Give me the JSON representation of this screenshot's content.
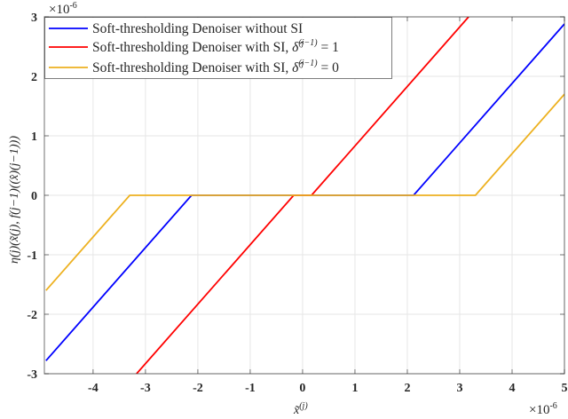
{
  "chart_data": {
    "type": "line",
    "title": "",
    "xlabel": "x̃^(j)",
    "ylabel": "η^(j)(x̃^(j), f^(j−1)(x̂)^(j−1))",
    "x_scale_label": "×10^-6",
    "y_scale_label": "×10^-6",
    "xlim": [
      -4.93,
      5
    ],
    "ylim": [
      -3,
      3
    ],
    "xticks": [
      -4,
      -3,
      -2,
      -1,
      0,
      1,
      2,
      3,
      4,
      5
    ],
    "yticks": [
      -3,
      -2,
      -1,
      0,
      1,
      2,
      3
    ],
    "grid": true,
    "legend_position": "upper left",
    "series": [
      {
        "name": "Soft-thresholding Denoiser without SI",
        "color": "#0000ff",
        "threshold": 2.12,
        "x": [
          -4.9,
          -2.12,
          2.12,
          5.0
        ],
        "y": [
          -2.78,
          0,
          0,
          2.88
        ]
      },
      {
        "name": "Soft-thresholding Denoiser with SI, δ̂^(j−1) = 1",
        "color": "#ff0000",
        "threshold": 0.17,
        "x": [
          -3.17,
          -0.17,
          0.17,
          3.17
        ],
        "y": [
          -3,
          0,
          0,
          3
        ]
      },
      {
        "name": "Soft-thresholding Denoiser with SI, δ̂^(j−1) = 0",
        "color": "#edb120",
        "threshold": 3.3,
        "x": [
          -4.9,
          -3.3,
          3.3,
          5.0
        ],
        "y": [
          -1.6,
          0,
          0,
          1.7
        ]
      }
    ]
  },
  "legend": {
    "items": [
      {
        "prefix": "Soft-thresholding Denoiser without SI",
        "math": ""
      },
      {
        "prefix": "Soft-thresholding Denoiser with SI, ",
        "math": "δ̂",
        "sup": "(j−1)",
        "eq": " = 1"
      },
      {
        "prefix": "Soft-thresholding Denoiser with SI, ",
        "math": "δ̂",
        "sup": "(j−1)",
        "eq": " = 0"
      }
    ]
  },
  "axes": {
    "x_tick_labels": [
      "-4",
      "-3",
      "-2",
      "-1",
      "0",
      "1",
      "2",
      "3",
      "4",
      "5"
    ],
    "y_tick_labels": [
      "3",
      "2",
      "1",
      "0",
      "-1",
      "-2",
      "-3"
    ],
    "x_exp_base": "×10",
    "x_exp_power": "-6",
    "y_exp_base": "×10",
    "y_exp_power": "-6",
    "xlabel_main": "x̃",
    "xlabel_sup": "(j)",
    "ylabel_text": "η(j)(x̃(j), f(j−1)((x̂)(j−1)))"
  }
}
